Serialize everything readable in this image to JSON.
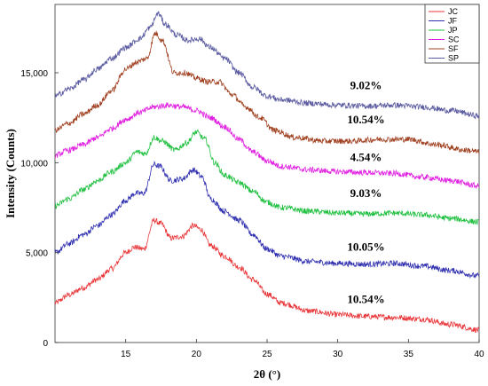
{
  "chart_data": {
    "type": "line",
    "title": "",
    "xlabel": "2θ (°)",
    "ylabel": "Intensity (Counts)",
    "xlim": [
      10,
      40
    ],
    "ylim": [
      0,
      18800
    ],
    "x_ticks": [
      15,
      20,
      25,
      30,
      35,
      40
    ],
    "y_ticks": [
      0,
      5000,
      10000,
      15000
    ],
    "y_tick_labels": [
      "0",
      "5,000",
      "10,000",
      "15,000"
    ],
    "grid": false,
    "legend_position": "top-right",
    "legend": [
      {
        "name": "JC",
        "color": "#e8383b"
      },
      {
        "name": "JF",
        "color": "#3030b0"
      },
      {
        "name": "JP",
        "color": "#20c040"
      },
      {
        "name": "SC",
        "color": "#e020e0"
      },
      {
        "name": "SF",
        "color": "#a04020"
      },
      {
        "name": "SP",
        "color": "#5a5aa0"
      }
    ],
    "series": [
      {
        "name": "JC",
        "color": "#e8383b",
        "x": [
          10,
          11,
          12,
          13,
          14,
          15,
          15.6,
          16.3,
          17,
          17.5,
          18.2,
          19,
          19.8,
          20.3,
          21,
          22,
          23,
          24,
          25,
          26,
          28,
          30,
          32,
          34,
          36,
          38,
          40
        ],
        "values": [
          2200,
          2650,
          3050,
          3500,
          4100,
          5000,
          5300,
          5200,
          6800,
          6600,
          5800,
          5900,
          6500,
          6300,
          5400,
          4800,
          4200,
          3500,
          2700,
          2200,
          1750,
          1550,
          1450,
          1400,
          1300,
          1000,
          700
        ]
      },
      {
        "name": "JF",
        "color": "#3030b0",
        "x": [
          10,
          11,
          12,
          13,
          14,
          15,
          15.7,
          16.3,
          17,
          17.4,
          18.2,
          19,
          19.8,
          20.4,
          21,
          22,
          23,
          24,
          25,
          26,
          28,
          30,
          32,
          34,
          36,
          38,
          40
        ],
        "values": [
          5000,
          5500,
          6000,
          6500,
          7100,
          7900,
          8300,
          8300,
          9900,
          9800,
          9000,
          9100,
          9600,
          9200,
          8000,
          7300,
          6800,
          6000,
          5200,
          4800,
          4500,
          4400,
          4350,
          4400,
          4250,
          4000,
          3700
        ]
      },
      {
        "name": "JP",
        "color": "#20c040",
        "x": [
          10,
          11,
          12,
          13,
          14,
          15,
          15.8,
          16.4,
          17,
          17.6,
          18.5,
          19.3,
          20,
          20.6,
          21.3,
          22,
          23,
          24,
          25,
          26,
          28,
          30,
          32,
          34,
          36,
          38,
          40
        ],
        "values": [
          7600,
          8000,
          8500,
          9000,
          9500,
          10000,
          10600,
          10500,
          11400,
          11200,
          10700,
          11100,
          11700,
          11300,
          10000,
          9300,
          8900,
          8400,
          7800,
          7500,
          7300,
          7200,
          7150,
          7200,
          7100,
          6900,
          6700
        ]
      },
      {
        "name": "SC",
        "color": "#e020e0",
        "x": [
          10,
          11,
          12,
          13,
          14,
          15,
          16,
          17,
          18,
          19,
          20,
          21,
          22,
          23,
          24,
          25,
          26,
          28,
          30,
          32,
          34,
          36,
          38,
          40
        ],
        "values": [
          10400,
          10700,
          11000,
          11400,
          11900,
          12400,
          12800,
          13100,
          13200,
          13100,
          12900,
          12500,
          12000,
          11300,
          10600,
          10100,
          9800,
          9600,
          9500,
          9450,
          9400,
          9200,
          9000,
          8700
        ]
      },
      {
        "name": "SF",
        "color": "#a04020",
        "x": [
          10,
          11,
          12,
          13,
          14,
          15,
          15.8,
          16.5,
          17.1,
          17.6,
          18.4,
          19.2,
          20,
          20.8,
          21.6,
          22.5,
          23.5,
          24.5,
          25.5,
          27,
          29,
          31,
          33,
          35,
          37,
          39,
          40
        ],
        "values": [
          11800,
          12200,
          12700,
          13200,
          14000,
          15200,
          15600,
          15800,
          17200,
          16800,
          15000,
          15000,
          14700,
          14500,
          14500,
          13800,
          13100,
          12500,
          11800,
          11400,
          11200,
          11200,
          11300,
          11300,
          11000,
          10700,
          10600
        ]
      },
      {
        "name": "SP",
        "color": "#5a5aa0",
        "x": [
          10,
          11,
          12,
          13,
          14,
          15,
          16,
          16.7,
          17.3,
          17.8,
          18.6,
          19.4,
          20.2,
          21,
          22,
          23,
          24,
          25,
          26,
          28,
          30,
          32,
          34,
          36,
          38,
          40
        ],
        "values": [
          13700,
          14100,
          14600,
          15200,
          15800,
          16400,
          16900,
          17500,
          18300,
          17700,
          17100,
          16800,
          16900,
          16400,
          15800,
          15000,
          14200,
          13700,
          13500,
          13300,
          13200,
          13150,
          13200,
          13100,
          12900,
          12600
        ]
      }
    ],
    "annotations": [
      {
        "text": "9.02%",
        "x": 32,
        "y": 14100
      },
      {
        "text": "10.54%",
        "x": 32,
        "y": 12200
      },
      {
        "text": "4.54%",
        "x": 32,
        "y": 10100
      },
      {
        "text": "9.03%",
        "x": 32,
        "y": 8100
      },
      {
        "text": "10.05%",
        "x": 32,
        "y": 5100
      },
      {
        "text": "10.54%",
        "x": 32,
        "y": 2200
      }
    ]
  }
}
